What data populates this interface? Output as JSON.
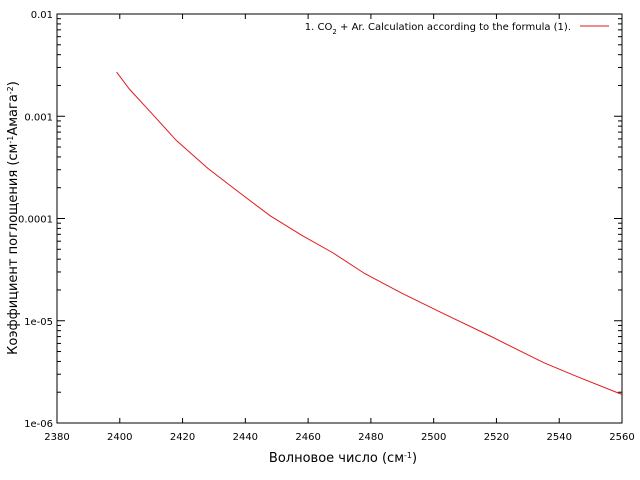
{
  "chart_data": {
    "type": "line",
    "title": "",
    "xlabel": "Волновое число (см",
    "xlabel_sup": "-1",
    "xlabel_end": ")",
    "ylabel": "Коэффициент поглощения (см",
    "ylabel_sup1": "-1",
    "ylabel_mid": "Амага",
    "ylabel_sup2": "-2",
    "ylabel_end": ")",
    "xlim": [
      2380,
      2560
    ],
    "ylim": [
      1e-06,
      0.01
    ],
    "yscale": "log",
    "grid": false,
    "legend_position": "top-right",
    "x_ticks": [
      2380,
      2400,
      2420,
      2440,
      2460,
      2480,
      2500,
      2520,
      2540,
      2560
    ],
    "x_tick_labels": [
      "2380",
      "2400",
      "2420",
      "2440",
      "2460",
      "2480",
      "2500",
      "2520",
      "2540",
      "2560"
    ],
    "y_ticks": [
      1e-06,
      1e-05,
      0.0001,
      0.001,
      0.01
    ],
    "y_tick_labels": [
      "1e-06",
      "1e-05",
      "0.0001",
      "0.001",
      "0.01"
    ],
    "legend": {
      "part1": "1. CO",
      "sub": "2",
      "part2": " + Ar. Calculation according to the formula (1)."
    },
    "series": [
      {
        "color": "#e31a1c",
        "x": [
          2399,
          2403,
          2410,
          2418,
          2428,
          2438,
          2448,
          2458,
          2468,
          2478,
          2490,
          2503,
          2518,
          2535,
          2545,
          2560
        ],
        "y": [
          0.0027,
          0.00185,
          0.00108,
          0.00058,
          0.00031,
          0.00018,
          0.000106,
          6.85e-05,
          4.6e-05,
          2.9e-05,
          1.85e-05,
          1.18e-05,
          7.1e-06,
          3.9e-06,
          2.9e-06,
          1.9e-06
        ]
      }
    ]
  }
}
